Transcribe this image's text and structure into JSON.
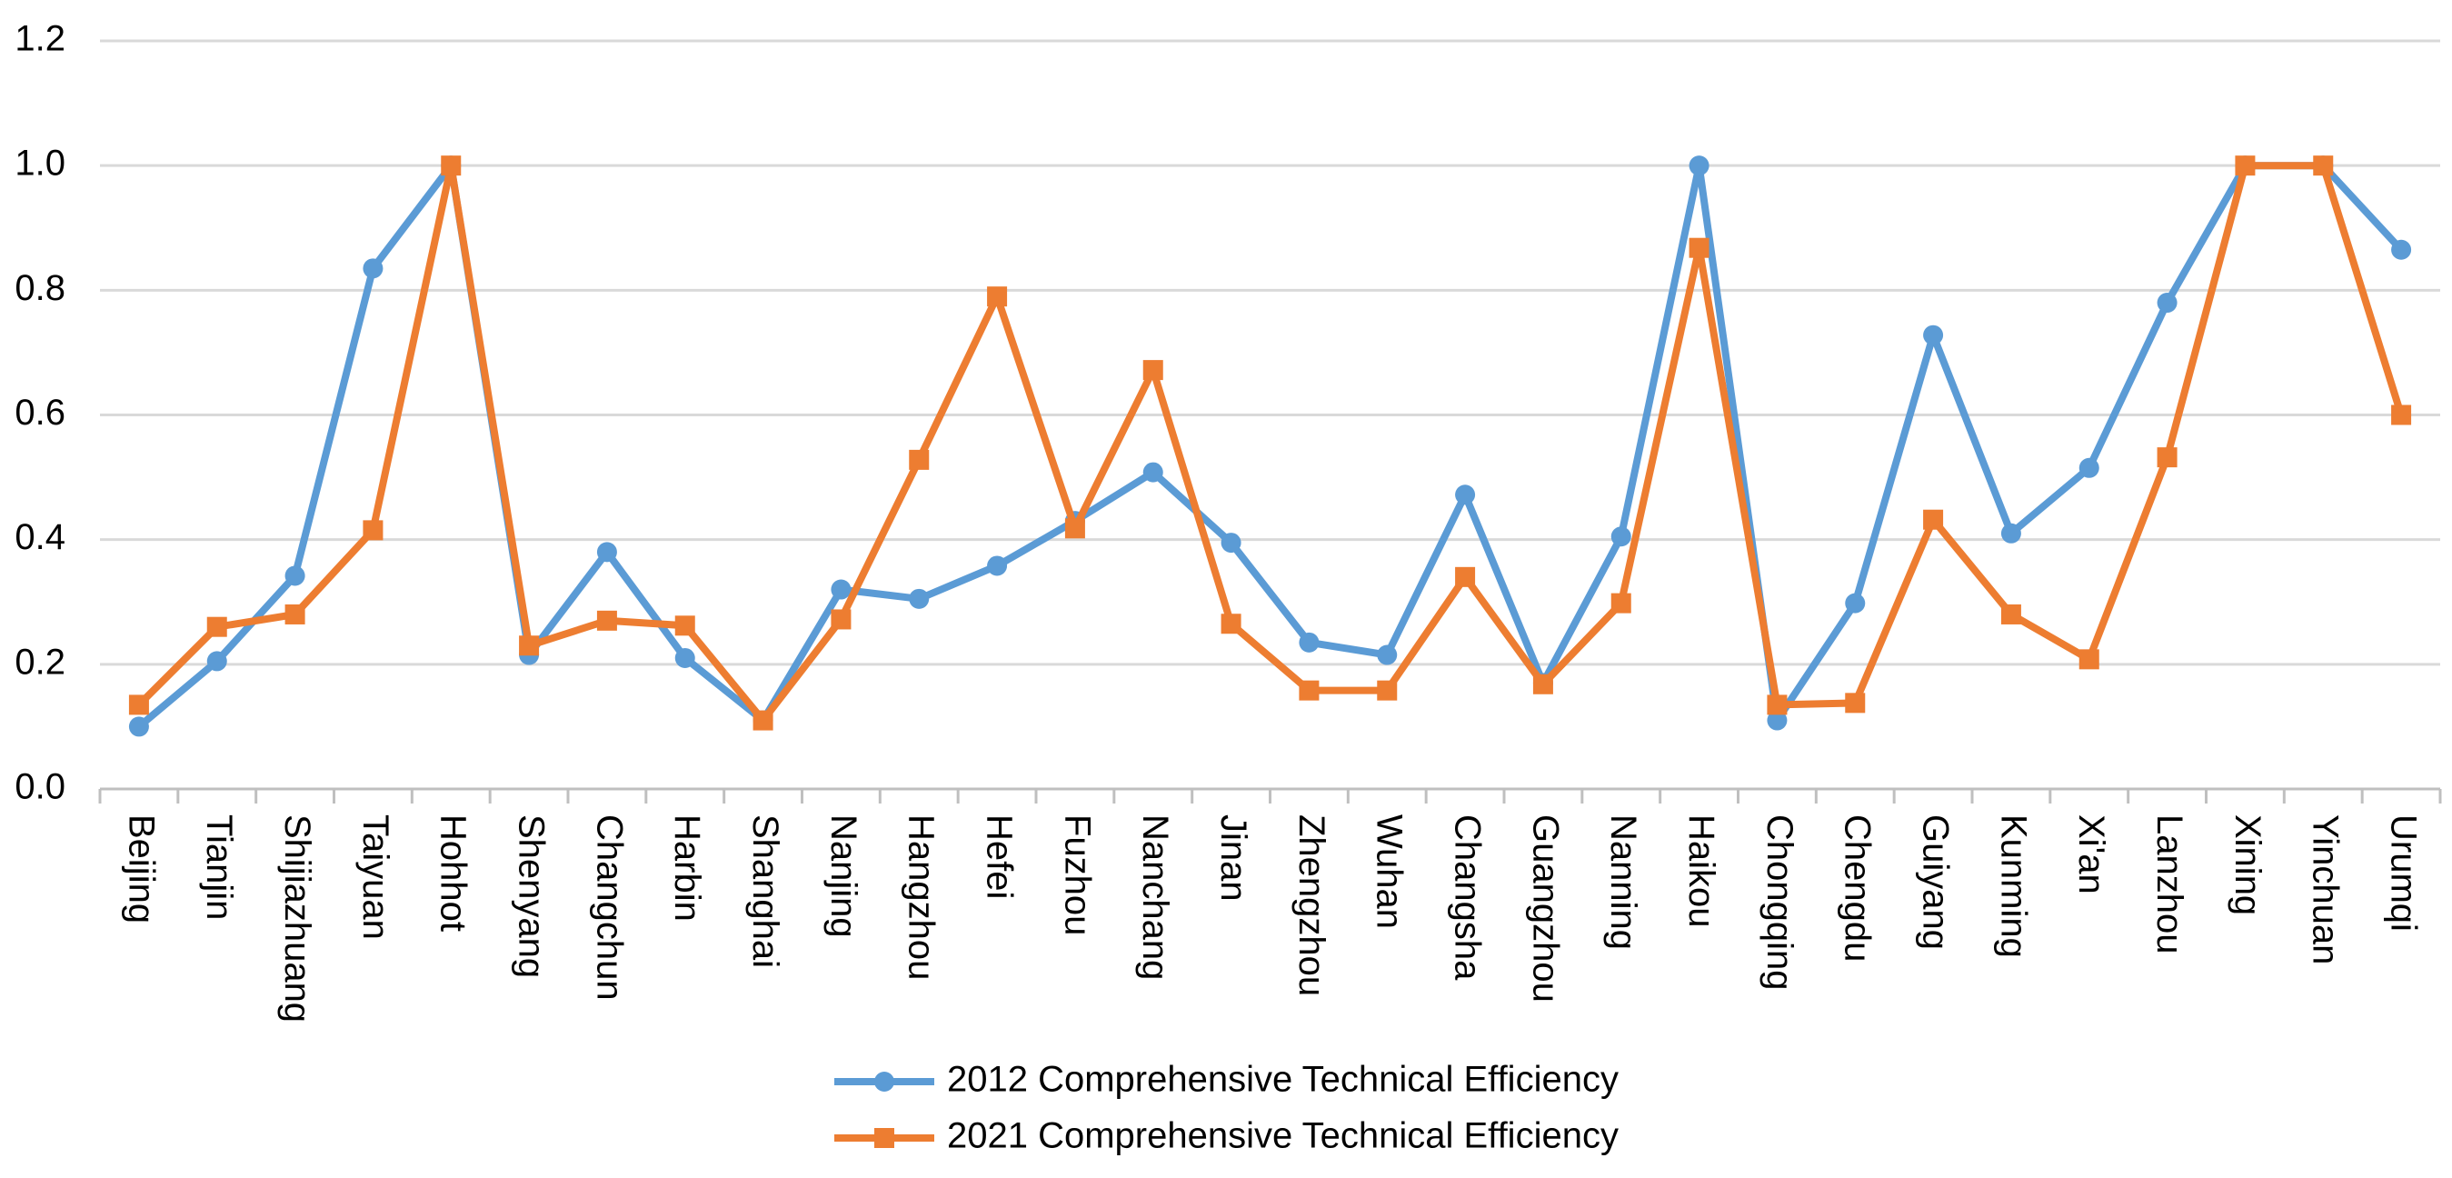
{
  "chart_data": {
    "type": "line",
    "title": "",
    "xlabel": "",
    "ylabel": "",
    "ylim": [
      0,
      1.2
    ],
    "yticks": [
      "0.0",
      "0.2",
      "0.4",
      "0.6",
      "0.8",
      "1.0",
      "1.2"
    ],
    "grid": true,
    "legend_position": "bottom-center",
    "categories": [
      "Beijing",
      "Tianjin",
      "Shijiazhuang",
      "Taiyuan",
      "Hohhot",
      "Shenyang",
      "Changchun",
      "Harbin",
      "Shanghai",
      "Nanjing",
      "Hangzhou",
      "Hefei",
      "Fuzhou",
      "Nanchang",
      "Jinan",
      "Zhengzhou",
      "Wuhan",
      "Changsha",
      "Guangzhou",
      "Nanning",
      "Haikou",
      "Chongqing",
      "Chengdu",
      "Guiyang",
      "Kunming",
      "Xi'an",
      "Lanzhou",
      "Xining",
      "Yinchuan",
      "Urumqi"
    ],
    "series": [
      {
        "name": "2012 Comprehensive Technical Efficiency",
        "color": "#5B9BD5",
        "marker": "circle",
        "values": [
          0.1,
          0.205,
          0.342,
          0.835,
          1.0,
          0.215,
          0.38,
          0.21,
          0.11,
          0.32,
          0.305,
          0.358,
          0.43,
          0.508,
          0.395,
          0.235,
          0.215,
          0.472,
          0.17,
          0.405,
          1.0,
          0.11,
          0.298,
          0.728,
          0.41,
          0.515,
          0.78,
          1.0,
          1.0,
          0.865
        ]
      },
      {
        "name": "2021 Comprehensive Technical Efficiency",
        "color": "#ED7D31",
        "marker": "square",
        "values": [
          0.135,
          0.26,
          0.28,
          0.415,
          1.0,
          0.23,
          0.27,
          0.262,
          0.11,
          0.272,
          0.528,
          0.79,
          0.418,
          0.672,
          0.265,
          0.158,
          0.158,
          0.34,
          0.168,
          0.298,
          0.868,
          0.135,
          0.138,
          0.432,
          0.28,
          0.208,
          0.532,
          1.0,
          1.0,
          0.6
        ]
      }
    ]
  }
}
